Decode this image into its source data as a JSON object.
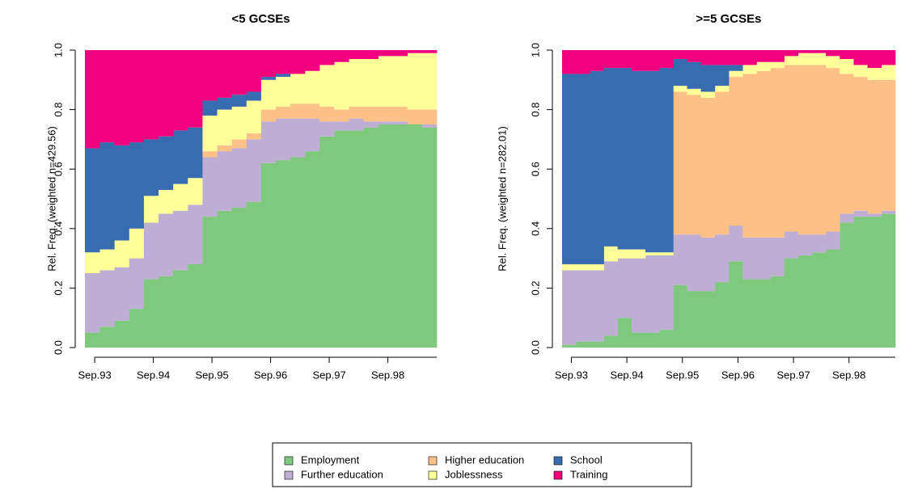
{
  "chart_data": [
    {
      "type": "stacked-step",
      "title": "<5 GCSEs",
      "y_label": "Rel. Freq. (weighted n=429.56)",
      "x": [
        0,
        3,
        6,
        9,
        12,
        15,
        18,
        21,
        24,
        27,
        30,
        33,
        36,
        39,
        42,
        45,
        48,
        51,
        54,
        57,
        60,
        63,
        66,
        69
      ],
      "xlim": [
        0,
        72
      ],
      "xticks": [
        {
          "value": 2,
          "label": "Sep.93"
        },
        {
          "value": 14,
          "label": "Sep.94"
        },
        {
          "value": 26,
          "label": "Sep.95"
        },
        {
          "value": 38,
          "label": "Sep.96"
        },
        {
          "value": 50,
          "label": "Sep.97"
        },
        {
          "value": 62,
          "label": "Sep.98"
        }
      ],
      "ylim": [
        0,
        1
      ],
      "yticks": [
        {
          "value": 0,
          "label": "0.0"
        },
        {
          "value": 0.2,
          "label": "0.2"
        },
        {
          "value": 0.4,
          "label": "0.4"
        },
        {
          "value": 0.6,
          "label": "0.6"
        },
        {
          "value": 0.8,
          "label": "0.8"
        },
        {
          "value": 1,
          "label": "1.0"
        }
      ],
      "series": [
        {
          "name": "Employment",
          "color": "#7FC97F",
          "values": [
            0.05,
            0.07,
            0.09,
            0.13,
            0.23,
            0.24,
            0.26,
            0.28,
            0.44,
            0.46,
            0.47,
            0.49,
            0.62,
            0.63,
            0.64,
            0.66,
            0.71,
            0.73,
            0.73,
            0.74,
            0.75,
            0.75,
            0.75,
            0.74
          ]
        },
        {
          "name": "Further education",
          "color": "#BEAED4",
          "values": [
            0.2,
            0.19,
            0.18,
            0.17,
            0.19,
            0.21,
            0.2,
            0.2,
            0.2,
            0.2,
            0.2,
            0.21,
            0.14,
            0.14,
            0.13,
            0.11,
            0.05,
            0.03,
            0.04,
            0.02,
            0.01,
            0.01,
            0.0,
            0.01
          ]
        },
        {
          "name": "Higher education",
          "color": "#FDC086",
          "values": [
            0,
            0,
            0,
            0,
            0,
            0,
            0,
            0,
            0.02,
            0.02,
            0.03,
            0.02,
            0.04,
            0.04,
            0.05,
            0.05,
            0.05,
            0.04,
            0.04,
            0.05,
            0.05,
            0.05,
            0.05,
            0.05
          ]
        },
        {
          "name": "Joblessness",
          "color": "#FFFF99",
          "values": [
            0.07,
            0.07,
            0.09,
            0.1,
            0.09,
            0.08,
            0.09,
            0.09,
            0.12,
            0.12,
            0.11,
            0.11,
            0.1,
            0.1,
            0.1,
            0.11,
            0.14,
            0.16,
            0.16,
            0.16,
            0.17,
            0.17,
            0.19,
            0.19
          ]
        },
        {
          "name": "School",
          "color": "#386CB0",
          "values": [
            0.35,
            0.36,
            0.32,
            0.29,
            0.19,
            0.18,
            0.18,
            0.17,
            0.05,
            0.04,
            0.04,
            0.03,
            0.01,
            0.01,
            0,
            0,
            0,
            0,
            0,
            0,
            0,
            0,
            0,
            0
          ]
        },
        {
          "name": "Training",
          "color": "#F0027F",
          "values": [
            0.33,
            0.31,
            0.32,
            0.31,
            0.3,
            0.29,
            0.27,
            0.26,
            0.17,
            0.16,
            0.15,
            0.14,
            0.09,
            0.08,
            0.08,
            0.07,
            0.05,
            0.04,
            0.03,
            0.03,
            0.02,
            0.02,
            0.01,
            0.01
          ]
        }
      ]
    },
    {
      "type": "stacked-step",
      "title": ">=5 GCSEs",
      "y_label": "Rel. Freq. (weighted n=282.01)",
      "x": [
        0,
        3,
        6,
        9,
        12,
        15,
        18,
        21,
        24,
        27,
        30,
        33,
        36,
        39,
        42,
        45,
        48,
        51,
        54,
        57,
        60,
        63,
        66,
        69
      ],
      "xlim": [
        0,
        72
      ],
      "xticks": [
        {
          "value": 2,
          "label": "Sep.93"
        },
        {
          "value": 14,
          "label": "Sep.94"
        },
        {
          "value": 26,
          "label": "Sep.95"
        },
        {
          "value": 38,
          "label": "Sep.96"
        },
        {
          "value": 50,
          "label": "Sep.97"
        },
        {
          "value": 62,
          "label": "Sep.98"
        }
      ],
      "ylim": [
        0,
        1
      ],
      "yticks": [
        {
          "value": 0,
          "label": "0.0"
        },
        {
          "value": 0.2,
          "label": "0.2"
        },
        {
          "value": 0.4,
          "label": "0.4"
        },
        {
          "value": 0.6,
          "label": "0.6"
        },
        {
          "value": 0.8,
          "label": "0.8"
        },
        {
          "value": 1,
          "label": "1.0"
        }
      ],
      "series": [
        {
          "name": "Employment",
          "color": "#7FC97F",
          "values": [
            0.01,
            0.02,
            0.02,
            0.04,
            0.1,
            0.05,
            0.05,
            0.06,
            0.21,
            0.19,
            0.19,
            0.22,
            0.29,
            0.23,
            0.23,
            0.24,
            0.3,
            0.31,
            0.32,
            0.33,
            0.42,
            0.44,
            0.44,
            0.45
          ]
        },
        {
          "name": "Further education",
          "color": "#BEAED4",
          "values": [
            0.25,
            0.24,
            0.24,
            0.25,
            0.2,
            0.25,
            0.26,
            0.25,
            0.17,
            0.19,
            0.18,
            0.16,
            0.12,
            0.14,
            0.14,
            0.13,
            0.09,
            0.07,
            0.06,
            0.06,
            0.03,
            0.02,
            0.01,
            0.01
          ]
        },
        {
          "name": "Higher education",
          "color": "#FDC086",
          "values": [
            0,
            0,
            0,
            0,
            0,
            0,
            0,
            0,
            0.48,
            0.47,
            0.47,
            0.48,
            0.5,
            0.55,
            0.56,
            0.57,
            0.56,
            0.57,
            0.57,
            0.55,
            0.47,
            0.45,
            0.45,
            0.44
          ]
        },
        {
          "name": "Joblessness",
          "color": "#FFFF99",
          "values": [
            0.02,
            0.02,
            0.02,
            0.05,
            0.03,
            0.03,
            0.01,
            0.01,
            0.02,
            0.02,
            0.02,
            0.02,
            0.02,
            0.03,
            0.03,
            0.02,
            0.03,
            0.04,
            0.04,
            0.04,
            0.05,
            0.04,
            0.04,
            0.05
          ]
        },
        {
          "name": "School",
          "color": "#386CB0",
          "values": [
            0.64,
            0.64,
            0.65,
            0.6,
            0.61,
            0.6,
            0.61,
            0.62,
            0.09,
            0.09,
            0.09,
            0.07,
            0.02,
            0,
            0,
            0,
            0,
            0,
            0,
            0,
            0,
            0,
            0,
            0
          ]
        },
        {
          "name": "Training",
          "color": "#F0027F",
          "values": [
            0.08,
            0.08,
            0.07,
            0.06,
            0.06,
            0.07,
            0.07,
            0.06,
            0.03,
            0.04,
            0.05,
            0.05,
            0.05,
            0.05,
            0.04,
            0.04,
            0.02,
            0.01,
            0.01,
            0.02,
            0.03,
            0.05,
            0.06,
            0.05
          ]
        }
      ]
    }
  ]
}
